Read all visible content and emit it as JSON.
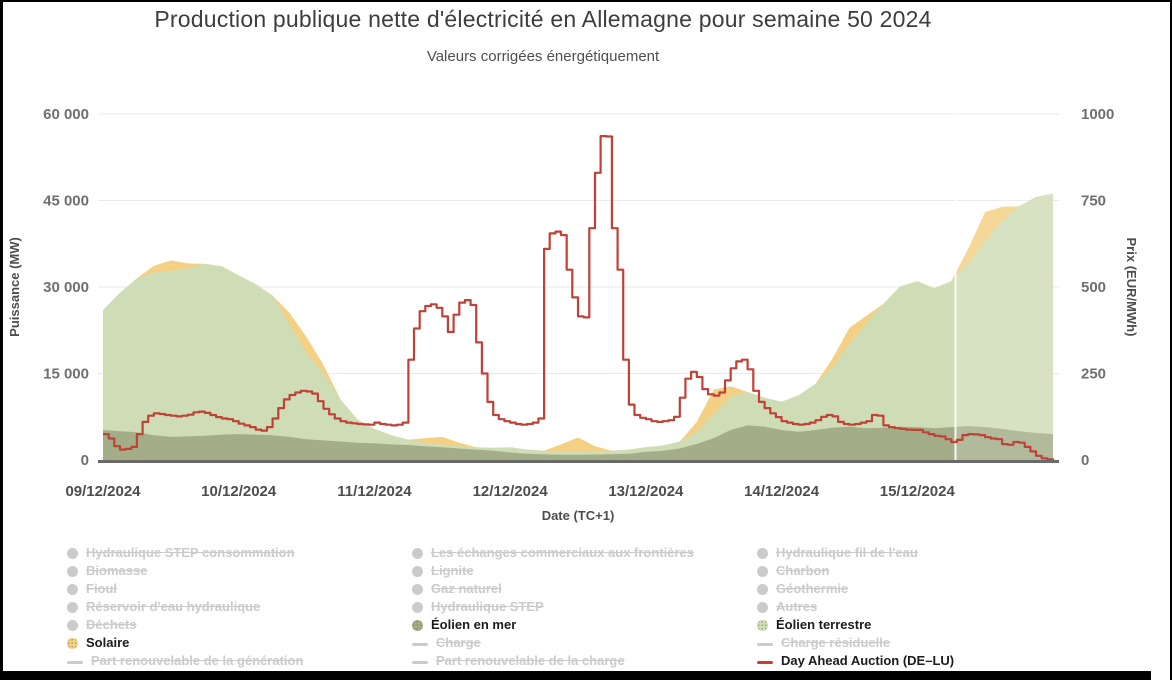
{
  "header": {
    "title": "Production publique nette d'électricité en Allemagne pour semaine 50 2024",
    "subtitle": "Valeurs corrigées énergétiquement"
  },
  "colors": {
    "background": "#ffffff",
    "grid": "#e9e9e9",
    "axis_line": "#6a6a6a",
    "wind_offshore": "#a3ae88",
    "wind_onshore": "#cfddb6",
    "solar": "#f4d084",
    "price": "#bf4237",
    "legend_inactive": "#cbcbcb",
    "now_line": "#ffffff"
  },
  "chart_data": {
    "type": "area",
    "title": "Production publique nette d'électricité en Allemagne pour semaine 50 2024",
    "subtitle": "Valeurs corrigées énergétiquement",
    "x_axis": {
      "label": "Date (TC+1)",
      "ticks": [
        "09/12/2024",
        "10/12/2024",
        "11/12/2024",
        "12/12/2024",
        "13/12/2024",
        "14/12/2024",
        "15/12/2024"
      ],
      "tick_hours": [
        0,
        24,
        48,
        72,
        96,
        120,
        144
      ],
      "hours_total": 168
    },
    "y_axis_left": {
      "label": "Puissance (MW)",
      "min": 0,
      "max": 60000,
      "tick_values": [
        0,
        15000,
        30000,
        45000,
        60000
      ],
      "tick_labels": [
        "0",
        "15 000",
        "30 000",
        "45 000",
        "60 000"
      ]
    },
    "y_axis_right": {
      "label": "Prix (EUR/MWh)",
      "min": 0,
      "max": 1000,
      "tick_values": [
        0,
        250,
        500,
        750,
        1000
      ],
      "tick_labels": [
        "0",
        "250",
        "500",
        "750",
        "1000"
      ]
    },
    "grid": true,
    "legend_position": "bottom",
    "now_line_hour": 150.75,
    "series": [
      {
        "name": "Éolien en mer",
        "type": "area",
        "axis": "left",
        "unit": "MW",
        "color": "#a3ae88",
        "step_hours": 3,
        "stacked": true,
        "values": [
          5200,
          5000,
          4800,
          4300,
          4000,
          4100,
          4200,
          4400,
          4500,
          4400,
          4300,
          4000,
          3600,
          3400,
          3200,
          3000,
          2900,
          2700,
          2600,
          2400,
          2200,
          2000,
          1800,
          1600,
          1300,
          1100,
          1000,
          900,
          900,
          950,
          1000,
          1100,
          1400,
          1600,
          2000,
          2800,
          3800,
          5200,
          6000,
          5800,
          5200,
          4900,
          5200,
          5600,
          5800,
          5500,
          5600,
          5800,
          5700,
          5500,
          5700,
          5900,
          5700,
          5400,
          5000,
          4700,
          4500
        ]
      },
      {
        "name": "Éolien terrestre",
        "type": "area",
        "axis": "left",
        "unit": "MW",
        "color": "#cfddb6",
        "step_hours": 3,
        "stacked": true,
        "values": [
          20800,
          24000,
          26700,
          28200,
          28800,
          29100,
          29800,
          29200,
          27500,
          26100,
          24200,
          19500,
          14900,
          11600,
          7300,
          4000,
          2500,
          1600,
          900,
          600,
          400,
          400,
          400,
          500,
          900,
          700,
          600,
          500,
          500,
          550,
          600,
          700,
          800,
          900,
          1200,
          2000,
          4200,
          5800,
          5800,
          5000,
          4900,
          6300,
          8000,
          10500,
          14300,
          18200,
          21500,
          24300,
          25300,
          24300,
          25300,
          28100,
          32300,
          36100,
          39000,
          40900,
          41700
        ]
      },
      {
        "name": "Solaire",
        "type": "area",
        "axis": "left",
        "unit": "MW",
        "color": "#f4d084",
        "step_hours": 3,
        "stacked": true,
        "values": [
          0,
          0,
          0,
          1200,
          1800,
          900,
          0,
          0,
          0,
          0,
          0,
          2000,
          2800,
          1500,
          0,
          0,
          0,
          0,
          0,
          800,
          1400,
          600,
          0,
          0,
          0,
          0,
          0,
          1300,
          2500,
          900,
          0,
          0,
          0,
          0,
          0,
          1800,
          4200,
          1800,
          0,
          0,
          0,
          0,
          0,
          1500,
          2800,
          1300,
          0,
          0,
          0,
          0,
          0,
          2600,
          5000,
          2400,
          0,
          0,
          0
        ]
      },
      {
        "name": "Day Ahead Auction (DE–LU)",
        "type": "line",
        "axis": "right",
        "unit": "EUR/MWh",
        "color": "#bf4237",
        "step_hours": 1,
        "stacked": false,
        "values": [
          75,
          62,
          40,
          30,
          32,
          38,
          75,
          110,
          128,
          135,
          133,
          130,
          128,
          126,
          128,
          131,
          138,
          140,
          136,
          130,
          124,
          120,
          118,
          112,
          105,
          100,
          95,
          88,
          85,
          95,
          120,
          150,
          175,
          188,
          195,
          200,
          198,
          192,
          170,
          148,
          132,
          120,
          112,
          108,
          106,
          104,
          103,
          102,
          108,
          104,
          102,
          100,
          102,
          108,
          290,
          380,
          430,
          445,
          450,
          440,
          415,
          370,
          420,
          455,
          462,
          448,
          340,
          250,
          168,
          130,
          118,
          112,
          108,
          104,
          102,
          104,
          108,
          120,
          610,
          655,
          660,
          650,
          550,
          470,
          415,
          412,
          670,
          830,
          936,
          935,
          670,
          550,
          290,
          160,
          130,
          122,
          118,
          112,
          110,
          112,
          115,
          125,
          180,
          235,
          255,
          240,
          205,
          190,
          186,
          195,
          230,
          265,
          285,
          290,
          262,
          200,
          168,
          150,
          135,
          124,
          112,
          108,
          104,
          102,
          104,
          108,
          115,
          125,
          130,
          126,
          110,
          104,
          102,
          104,
          108,
          112,
          130,
          128,
          100,
          95,
          92,
          90,
          88,
          87,
          87,
          80,
          75,
          70,
          68,
          60,
          52,
          58,
          72,
          75,
          74,
          72,
          66,
          62,
          60,
          46,
          44,
          52,
          50,
          38,
          25,
          12,
          5,
          2,
          0
        ]
      }
    ]
  },
  "legend": {
    "columns": [
      {
        "items": [
          {
            "label": "Hydraulique STEP consommation",
            "marker": "circle",
            "active": false
          },
          {
            "label": "Biomasse",
            "marker": "circle",
            "active": false
          },
          {
            "label": "Fioul",
            "marker": "circle",
            "active": false
          },
          {
            "label": "Réservoir d'eau hydraulique",
            "marker": "circle",
            "active": false
          },
          {
            "label": "Déchets",
            "marker": "circle",
            "active": false
          },
          {
            "label": "Solaire",
            "marker": "circle",
            "active": true,
            "color": "#f4d084"
          },
          {
            "label": "Part renouvelable de la génération",
            "marker": "line",
            "active": false
          }
        ]
      },
      {
        "items": [
          {
            "label": "Les échanges commerciaux aux frontières",
            "marker": "circle",
            "active": false
          },
          {
            "label": "Lignite",
            "marker": "circle",
            "active": false
          },
          {
            "label": "Gaz naturel",
            "marker": "circle",
            "active": false
          },
          {
            "label": "Hydraulique STEP",
            "marker": "circle",
            "active": false
          },
          {
            "label": "Éolien en mer",
            "marker": "circle",
            "active": true,
            "color": "#a3ae88"
          },
          {
            "label": "Charge",
            "marker": "line",
            "active": false
          },
          {
            "label": "Part renouvelable de la charge",
            "marker": "line",
            "active": false
          }
        ]
      },
      {
        "items": [
          {
            "label": "Hydraulique fil de l'eau",
            "marker": "circle",
            "active": false
          },
          {
            "label": "Charbon",
            "marker": "circle",
            "active": false
          },
          {
            "label": "Géothermie",
            "marker": "circle",
            "active": false
          },
          {
            "label": "Autres",
            "marker": "circle",
            "active": false
          },
          {
            "label": "Éolien terrestre",
            "marker": "circle",
            "active": true,
            "color": "#cfddb6"
          },
          {
            "label": "Charge résiduelle",
            "marker": "line",
            "active": false
          },
          {
            "label": "Day Ahead Auction (DE–LU)",
            "marker": "line",
            "active": true,
            "color": "#bf4237"
          }
        ]
      }
    ]
  }
}
